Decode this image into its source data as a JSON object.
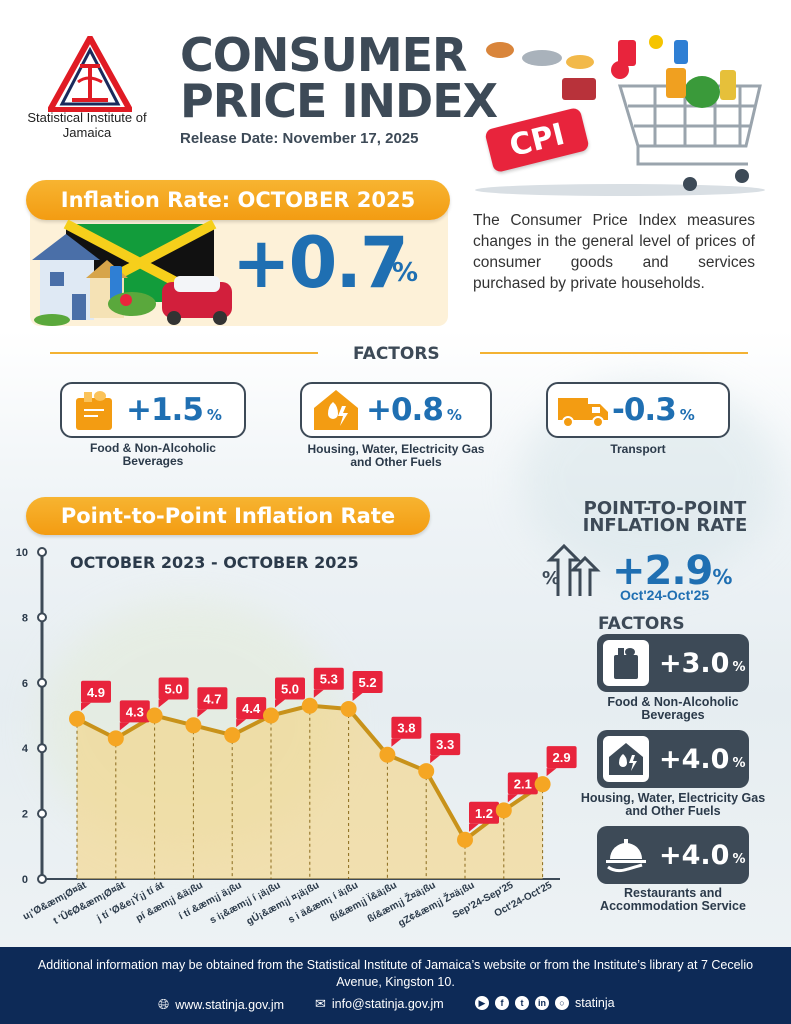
{
  "organization": {
    "name": "Statistical Institute of Jamaica"
  },
  "header": {
    "title": "CONSUMER PRICE INDEX",
    "release_date": "Release Date: November 17, 2025",
    "cpi_tag": "CPI"
  },
  "inflation": {
    "label": "Inflation Rate: OCTOBER 2025",
    "value": "+0.7",
    "unit": "%",
    "description": "The Consumer Price Index measures changes in the general level of prices of consumer goods and services purchased by private households."
  },
  "factors": {
    "heading": "FACTORS",
    "items": [
      {
        "value": "+1.5",
        "unit": "%",
        "label": "Food & Non-Alcoholic Beverages",
        "icon": "grocery-bag-icon"
      },
      {
        "value": "+0.8",
        "unit": "%",
        "label": "Housing, Water, Electricity Gas and Other Fuels",
        "icon": "house-utilities-icon"
      },
      {
        "value": "-0.3",
        "unit": "%",
        "label": "Transport",
        "icon": "truck-icon"
      }
    ]
  },
  "ptp": {
    "section_label": "Point-to-Point Inflation Rate",
    "chart_subtitle": "OCTOBER 2023 - OCTOBER 2025",
    "panel_title": "POINT-TO-POINT INFLATION RATE",
    "value": "+2.9",
    "unit": "%",
    "range": "Oct'24-Oct'25",
    "factors_heading": "FACTORS",
    "factors": [
      {
        "value": "+3.0",
        "unit": "%",
        "label": "Food & Non-Alcoholic Beverages",
        "icon": "grocery-bag-icon"
      },
      {
        "value": "+4.0",
        "unit": "%",
        "label": "Housing, Water, Electricity Gas and Other Fuels",
        "icon": "house-utilities-icon"
      },
      {
        "value": "+4.0",
        "unit": "%",
        "label": "Restaurants and Accommodation Service",
        "icon": "serving-cloche-icon"
      }
    ]
  },
  "chart_data": {
    "type": "area",
    "title": "Point-to-Point Inflation Rate",
    "subtitle": "OCTOBER 2023 - OCTOBER 2025",
    "xlabel": "",
    "ylabel": "",
    "ylim": [
      0,
      10
    ],
    "yticks": [
      "0",
      "2",
      "4",
      "6",
      "8",
      "10"
    ],
    "categories": [
      "u¡'Ø&æm¡Ø¤ât",
      "t 'Û¢Ø&æm¡Ø¤ât",
      "j tí 'Ø&e¡Ý¡j tí át",
      "pí &æm¡j &ä¡ßu",
      "í tí &æm¡j ä¡ßu",
      "s i¡&æm¡j í ¡ä¡ßu",
      "gÚ¡&æm¡j ¤¡ä¡ßu",
      "s i ä&æm¡ í ä¡ßu",
      "ßí&æm¡j Ï&ä¡ßu",
      "ßí&æm¡j Ž¤ä¡ßu",
      "gZ¢&æm¡j Ž¤ä¡ßu",
      "Sep'24-Sep'25",
      "Oct'24-Oct'25"
    ],
    "values": [
      4.9,
      4.3,
      5.0,
      4.7,
      4.4,
      5.0,
      5.3,
      5.2,
      3.8,
      3.3,
      1.2,
      2.1,
      2.9
    ],
    "data_labels": [
      "4.9",
      "4.3",
      "5.0",
      "4.7",
      "4.4",
      "5.0",
      "5.3",
      "5.2",
      "3.8",
      "3.3",
      "1.2",
      "2.1",
      "2.9"
    ],
    "grid": false,
    "colors": {
      "line": "#c8921a",
      "point": "#f5a623",
      "fill": "#f6d277",
      "label_bg": "#e8243c"
    }
  },
  "footer": {
    "text": "Additional information may be obtained from the Statistical Institute of Jamaica’s website or from the Institute’s library at 7 Cecelio Avenue, Kingston 10.",
    "website": "www.statinja.gov.jm",
    "email": "info@statinja.gov.jm",
    "social_handle": "statinja"
  },
  "colors": {
    "navy": "#0d2a57",
    "blue": "#1f6fb2",
    "orange": "#f39c12",
    "slate": "#3d4a57",
    "red": "#e8243c"
  }
}
